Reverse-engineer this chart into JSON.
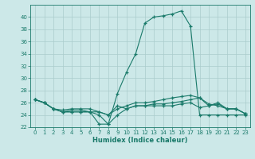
{
  "bg_color": "#cce8e8",
  "grid_color": "#aacccc",
  "line_color": "#1a7a6a",
  "xlabel": "Humidex (Indice chaleur)",
  "xlim": [
    -0.5,
    23.5
  ],
  "ylim": [
    22,
    42
  ],
  "yticks": [
    22,
    24,
    26,
    28,
    30,
    32,
    34,
    36,
    38,
    40
  ],
  "xticks": [
    0,
    1,
    2,
    3,
    4,
    5,
    6,
    7,
    8,
    9,
    10,
    11,
    12,
    13,
    14,
    15,
    16,
    17,
    18,
    19,
    20,
    21,
    22,
    23
  ],
  "line1_x": [
    0,
    1,
    2,
    3,
    4,
    5,
    6,
    7,
    8,
    9,
    10,
    11,
    12,
    13,
    14,
    15,
    16,
    17,
    18,
    19,
    20,
    21,
    22,
    23
  ],
  "line1_y": [
    26.5,
    26.0,
    25.0,
    24.5,
    24.5,
    24.5,
    24.5,
    24.0,
    22.5,
    27.5,
    31.0,
    34.0,
    39.0,
    40.0,
    40.2,
    40.5,
    41.0,
    38.5,
    24.0,
    24.0,
    24.0,
    24.0,
    24.0,
    24.0
  ],
  "line2_x": [
    0,
    1,
    2,
    3,
    4,
    5,
    6,
    7,
    8,
    9,
    10,
    11,
    12,
    13,
    14,
    15,
    16,
    17,
    18,
    19,
    20,
    21,
    22,
    23
  ],
  "line2_y": [
    26.5,
    26.0,
    25.0,
    24.8,
    25.0,
    25.0,
    25.0,
    24.5,
    24.0,
    25.0,
    25.5,
    26.0,
    26.0,
    26.2,
    26.5,
    26.8,
    27.0,
    27.2,
    26.8,
    25.5,
    25.8,
    25.0,
    25.0,
    24.2
  ],
  "line3_x": [
    0,
    1,
    2,
    3,
    4,
    5,
    6,
    7,
    8,
    9,
    10,
    11,
    12,
    13,
    14,
    15,
    16,
    17,
    18,
    19,
    20,
    21,
    22,
    23
  ],
  "line3_y": [
    26.5,
    26.0,
    25.0,
    24.5,
    24.5,
    24.5,
    24.5,
    22.5,
    22.5,
    24.0,
    25.0,
    25.5,
    25.5,
    25.5,
    25.5,
    25.5,
    25.8,
    26.0,
    25.2,
    25.5,
    26.0,
    25.0,
    25.0,
    24.2
  ],
  "line4_x": [
    0,
    1,
    2,
    3,
    4,
    5,
    6,
    7,
    8,
    9,
    10,
    11,
    12,
    13,
    14,
    15,
    16,
    17,
    18,
    19,
    20,
    21,
    22,
    23
  ],
  "line4_y": [
    26.5,
    26.0,
    25.0,
    24.5,
    24.8,
    24.8,
    24.5,
    24.5,
    24.0,
    25.5,
    25.0,
    25.5,
    25.5,
    25.8,
    25.8,
    26.0,
    26.2,
    26.5,
    26.8,
    25.8,
    25.5,
    25.0,
    25.0,
    24.2
  ],
  "tick_fontsize": 5,
  "xlabel_fontsize": 6
}
